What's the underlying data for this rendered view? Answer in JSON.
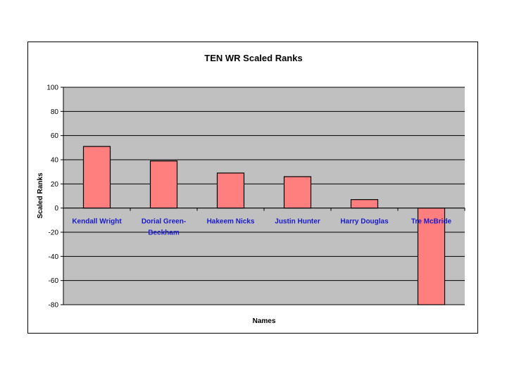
{
  "chart_data": {
    "type": "bar",
    "title": "TEN WR  Scaled Ranks",
    "xlabel": "Names",
    "ylabel": "Scaled Ranks",
    "categories": [
      "Kendall Wright",
      "Dorial Green-Beckham",
      "Hakeem Nicks",
      "Justin Hunter",
      "Harry Douglas",
      "Tre McBride"
    ],
    "category_lines": [
      [
        "Kendall Wright"
      ],
      [
        "Dorial Green-",
        "Beckham"
      ],
      [
        "Hakeem Nicks"
      ],
      [
        "Justin Hunter"
      ],
      [
        "Harry Douglas"
      ],
      [
        "Tre McBride"
      ]
    ],
    "values": [
      51,
      39,
      29,
      26,
      7,
      -81
    ],
    "ylim": [
      -80,
      100
    ],
    "yticks": [
      100,
      80,
      60,
      40,
      20,
      0,
      -20,
      -40,
      -60,
      -80
    ],
    "grid": true,
    "legend": "none"
  },
  "colors": {
    "bar_fill": "#ff7f7f",
    "plot_bg": "#c0c0c0",
    "category_label": "#1a1acc"
  }
}
